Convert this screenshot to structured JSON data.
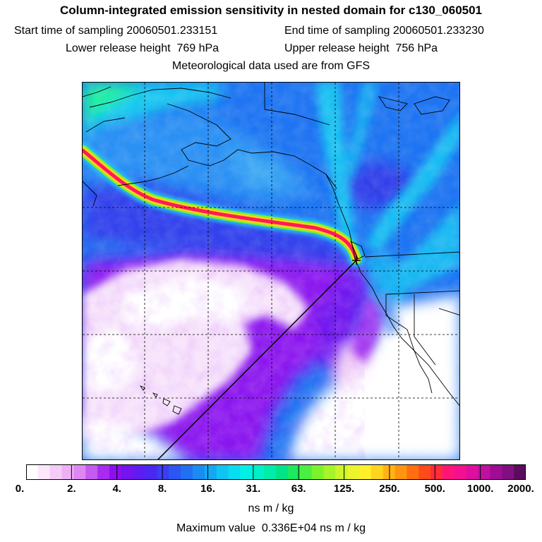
{
  "header": {
    "title": "Column-integrated emission sensitivity in nested domain for c130_060501",
    "start_label": "Start time of sampling",
    "start_value": "20060501.233151",
    "end_label": "End time of sampling",
    "end_value": "20060501.233230",
    "lower_label": "Lower release height",
    "lower_value": "769 hPa",
    "upper_label": "Upper release height",
    "upper_value": "756 hPa",
    "met_note": "Meteorological data used are from GFS"
  },
  "colorbar": {
    "ticks": [
      "0.",
      "2.",
      "4.",
      "8.",
      "16.",
      "31.",
      "63.",
      "125.",
      "250.",
      "500.",
      "1000.",
      "2000."
    ],
    "colors": [
      "#ffffff",
      "#fbe6fb",
      "#f5ccf7",
      "#eeb0f5",
      "#dd88f2",
      "#c45af0",
      "#a82cf0",
      "#8c10ee",
      "#7414ee",
      "#5e1cf0",
      "#4a28f2",
      "#3a3ef2",
      "#2c56f2",
      "#2270f2",
      "#1a8cf4",
      "#14a8f4",
      "#10c4f2",
      "#0adcf0",
      "#00f0e6",
      "#00f0c8",
      "#00ecaa",
      "#00e486",
      "#1ce860",
      "#4af040",
      "#7cf22c",
      "#a6f42a",
      "#ccf62a",
      "#ecf42c",
      "#fff02a",
      "#ffd41e",
      "#ffb414",
      "#ff9410",
      "#ff6e10",
      "#ff4a1a",
      "#ff2c3a",
      "#ff1478",
      "#f41090",
      "#dc109c",
      "#c010a0",
      "#a00c94",
      "#801080",
      "#5c0c5c"
    ],
    "units": "ns m / kg",
    "max_label": "Maximum value",
    "max_value": "0.336E+04 ns m / kg"
  },
  "map": {
    "release_marker": "release-point",
    "plume_colors": {
      "core": "#ff1a5a",
      "inner": "#ffd21a",
      "outer": "#7cf22c"
    }
  }
}
